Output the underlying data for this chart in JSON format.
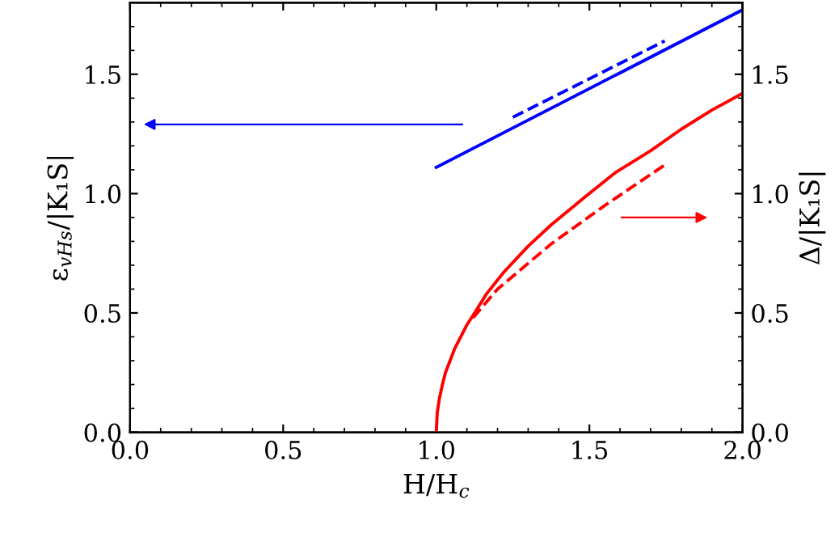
{
  "chart_data": {
    "type": "line",
    "xlabel": "H/H$_{c}$",
    "ylabel": "ε$_{vHs}$/|K₁S|",
    "y2label": "Δ/|K₁S|",
    "xlim": [
      0,
      2
    ],
    "xticks": [
      {
        "value": 0,
        "label": "0.0"
      },
      0.5,
      {
        "value": 1,
        "label": "1.0"
      },
      1.5,
      {
        "value": 2,
        "label": "2.0"
      }
    ],
    "ylim": [
      0,
      1.8
    ],
    "yticks": [
      {
        "value": 0,
        "label": "0.0"
      },
      0.5,
      {
        "value": 1,
        "label": "1.0"
      },
      1.5
    ],
    "y2lim": [
      0,
      1.8
    ],
    "y2ticks": [
      {
        "value": 0,
        "label": "0.0"
      },
      0.5,
      {
        "value": 1,
        "label": "1.0"
      },
      1.5
    ],
    "grid": false,
    "legend": false,
    "marker": "none",
    "series": [
      {
        "color": "#0000ff",
        "line_style": "solid",
        "x": [
          1.0,
          2.0
        ],
        "values": [
          1.11,
          1.77
        ]
      },
      {
        "color": "#0000ff",
        "line_style": "dashed",
        "x": [
          1.25,
          1.746
        ],
        "values": [
          1.32,
          1.64
        ]
      },
      {
        "color": "#ff0000",
        "line_style": "solid",
        "axis": "y2",
        "x": [
          1.0,
          1.003,
          1.01,
          1.02,
          1.03,
          1.045,
          1.06,
          1.08,
          1.1,
          1.13,
          1.164,
          1.22,
          1.3,
          1.376,
          1.48,
          1.587,
          1.7,
          1.8,
          1.9,
          2.0
        ],
        "values": [
          0.0,
          0.08,
          0.14,
          0.2,
          0.25,
          0.3,
          0.35,
          0.4,
          0.45,
          0.51,
          0.58,
          0.67,
          0.78,
          0.87,
          0.98,
          1.09,
          1.18,
          1.27,
          1.35,
          1.42
        ]
      },
      {
        "color": "#ff0000",
        "line_style": "dashed",
        "axis": "y2",
        "x": [
          1.12,
          1.2,
          1.376,
          1.55,
          1.746
        ],
        "values": [
          0.48,
          0.6,
          0.79,
          0.95,
          1.12
        ]
      }
    ]
  }
}
